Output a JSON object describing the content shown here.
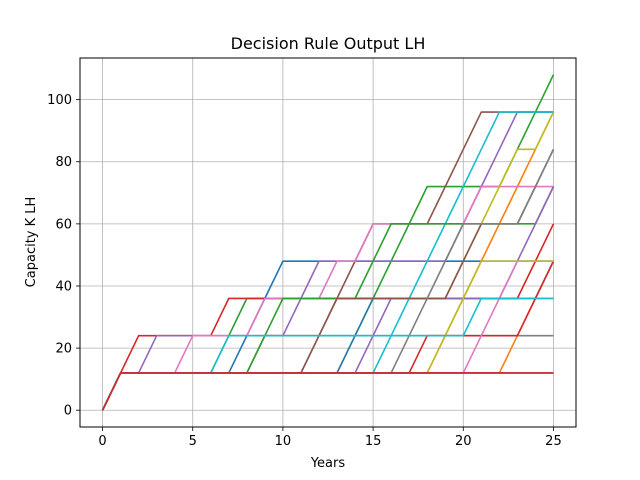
{
  "chart_data": {
    "type": "line",
    "title": "Decision Rule Output LH",
    "xlabel": "Years",
    "ylabel": "Capacity K LH",
    "xlim": [
      -1.25,
      26.25
    ],
    "ylim": [
      -5.4,
      113.4
    ],
    "x_ticks": [
      0,
      5,
      10,
      15,
      20,
      25
    ],
    "y_ticks": [
      0,
      20,
      40,
      60,
      80,
      100
    ],
    "grid": true,
    "legend": "none",
    "step_years": [
      1,
      2,
      3,
      4,
      5,
      6,
      7,
      8,
      9,
      10,
      11,
      12,
      13,
      14,
      15,
      16,
      17,
      18,
      19,
      20,
      21,
      22,
      23,
      24,
      25
    ],
    "series": [
      {
        "color": "#1f77b4",
        "values": [
          0,
          12,
          12,
          12,
          12,
          12,
          12,
          12,
          24,
          36,
          48,
          48,
          48,
          48,
          48,
          48,
          48,
          48,
          48,
          48,
          48,
          48,
          48,
          48,
          48,
          48
        ]
      },
      {
        "color": "#ff7f0e",
        "values": [
          0,
          12,
          12,
          12,
          12,
          12,
          12,
          12,
          12,
          12,
          12,
          12,
          12,
          12,
          12,
          12,
          12,
          12,
          12,
          24,
          36,
          48,
          60,
          72,
          84,
          96
        ]
      },
      {
        "color": "#2ca02c",
        "values": [
          0,
          12,
          12,
          12,
          12,
          12,
          12,
          24,
          36,
          36,
          36,
          36,
          36,
          36,
          36,
          36,
          48,
          60,
          72,
          72,
          72,
          72,
          72,
          84,
          96,
          108
        ]
      },
      {
        "color": "#d62728",
        "values": [
          0,
          12,
          24,
          24,
          24,
          24,
          24,
          36,
          36,
          36,
          36,
          36,
          36,
          36,
          36,
          36,
          36,
          36,
          36,
          36,
          36,
          36,
          36,
          36,
          48,
          60
        ]
      },
      {
        "color": "#9467bd",
        "values": [
          0,
          12,
          12,
          24,
          24,
          24,
          24,
          24,
          24,
          24,
          24,
          36,
          48,
          48,
          48,
          48,
          48,
          48,
          48,
          48,
          60,
          72,
          84,
          96,
          96,
          96
        ]
      },
      {
        "color": "#8c564b",
        "values": [
          0,
          12,
          12,
          12,
          12,
          12,
          12,
          12,
          12,
          24,
          24,
          24,
          24,
          36,
          48,
          60,
          60,
          60,
          60,
          72,
          84,
          96,
          96,
          96,
          96,
          96
        ]
      },
      {
        "color": "#e377c2",
        "values": [
          0,
          12,
          12,
          12,
          12,
          24,
          24,
          24,
          24,
          36,
          36,
          36,
          36,
          48,
          48,
          60,
          60,
          60,
          60,
          60,
          60,
          72,
          72,
          72,
          72,
          72
        ]
      },
      {
        "color": "#7f7f7f",
        "values": [
          0,
          12,
          12,
          12,
          12,
          12,
          12,
          12,
          12,
          12,
          12,
          12,
          24,
          24,
          24,
          24,
          24,
          24,
          24,
          24,
          24,
          24,
          24,
          24,
          24,
          24
        ]
      },
      {
        "color": "#bcbd22",
        "values": [
          0,
          12,
          12,
          12,
          12,
          12,
          12,
          12,
          12,
          12,
          12,
          12,
          12,
          12,
          24,
          36,
          36,
          36,
          36,
          36,
          48,
          60,
          72,
          84,
          84,
          96
        ]
      },
      {
        "color": "#17becf",
        "values": [
          0,
          12,
          12,
          12,
          12,
          12,
          12,
          12,
          12,
          12,
          12,
          12,
          12,
          12,
          12,
          12,
          24,
          36,
          48,
          60,
          72,
          84,
          96,
          96,
          96,
          96
        ]
      },
      {
        "color": "#1f77b4",
        "values": [
          0,
          12,
          12,
          12,
          12,
          12,
          12,
          12,
          12,
          12,
          12,
          12,
          12,
          12,
          24,
          36,
          36,
          36,
          36,
          36,
          36,
          36,
          36,
          36,
          36,
          48
        ]
      },
      {
        "color": "#ff7f0e",
        "values": [
          0,
          12,
          12,
          12,
          12,
          12,
          12,
          12,
          12,
          12,
          12,
          12,
          12,
          12,
          12,
          12,
          12,
          12,
          12,
          12,
          12,
          12,
          12,
          24,
          36,
          36
        ]
      },
      {
        "color": "#2ca02c",
        "values": [
          0,
          12,
          12,
          12,
          12,
          12,
          12,
          12,
          12,
          24,
          36,
          36,
          36,
          36,
          36,
          48,
          60,
          60,
          60,
          60,
          60,
          60,
          60,
          60,
          60,
          72
        ]
      },
      {
        "color": "#d62728",
        "values": [
          0,
          12,
          12,
          12,
          12,
          12,
          12,
          12,
          12,
          12,
          12,
          12,
          12,
          12,
          12,
          12,
          12,
          12,
          24,
          24,
          24,
          24,
          24,
          24,
          36,
          48
        ]
      },
      {
        "color": "#9467bd",
        "values": [
          0,
          12,
          12,
          12,
          12,
          12,
          12,
          12,
          12,
          12,
          12,
          12,
          12,
          12,
          12,
          24,
          36,
          36,
          36,
          36,
          36,
          36,
          36,
          48,
          60,
          72
        ]
      },
      {
        "color": "#8c564b",
        "values": [
          0,
          12,
          12,
          12,
          12,
          12,
          12,
          12,
          12,
          12,
          12,
          12,
          24,
          36,
          36,
          36,
          36,
          36,
          36,
          36,
          48,
          60,
          60,
          60,
          72,
          84
        ]
      },
      {
        "color": "#e377c2",
        "values": [
          0,
          12,
          12,
          12,
          12,
          12,
          12,
          12,
          12,
          12,
          12,
          12,
          12,
          12,
          12,
          12,
          12,
          12,
          12,
          12,
          12,
          24,
          36,
          48,
          48,
          48
        ]
      },
      {
        "color": "#7f7f7f",
        "values": [
          0,
          12,
          12,
          12,
          12,
          12,
          12,
          12,
          12,
          12,
          12,
          12,
          12,
          12,
          12,
          12,
          12,
          24,
          36,
          48,
          60,
          60,
          60,
          60,
          72,
          84
        ]
      },
      {
        "color": "#bcbd22",
        "values": [
          0,
          12,
          12,
          12,
          12,
          12,
          12,
          12,
          12,
          12,
          12,
          12,
          12,
          12,
          12,
          12,
          12,
          12,
          12,
          24,
          36,
          48,
          48,
          48,
          48,
          48
        ]
      },
      {
        "color": "#17becf",
        "values": [
          0,
          12,
          12,
          12,
          12,
          12,
          12,
          24,
          24,
          24,
          24,
          24,
          24,
          24,
          24,
          24,
          24,
          24,
          24,
          24,
          24,
          36,
          36,
          36,
          36,
          36
        ]
      },
      {
        "color": "#1f77b4",
        "values": [
          0,
          12,
          12,
          12,
          12,
          12,
          12,
          12,
          12,
          12,
          12,
          12,
          12,
          12,
          12,
          12,
          12,
          12,
          12,
          12,
          12,
          12,
          12,
          12,
          12,
          12
        ]
      },
      {
        "color": "#d62728",
        "values": [
          0,
          12,
          12,
          12,
          12,
          12,
          12,
          12,
          12,
          12,
          12,
          12,
          12,
          12,
          12,
          12,
          12,
          12,
          12,
          12,
          12,
          12,
          12,
          12,
          12,
          12
        ]
      }
    ]
  }
}
